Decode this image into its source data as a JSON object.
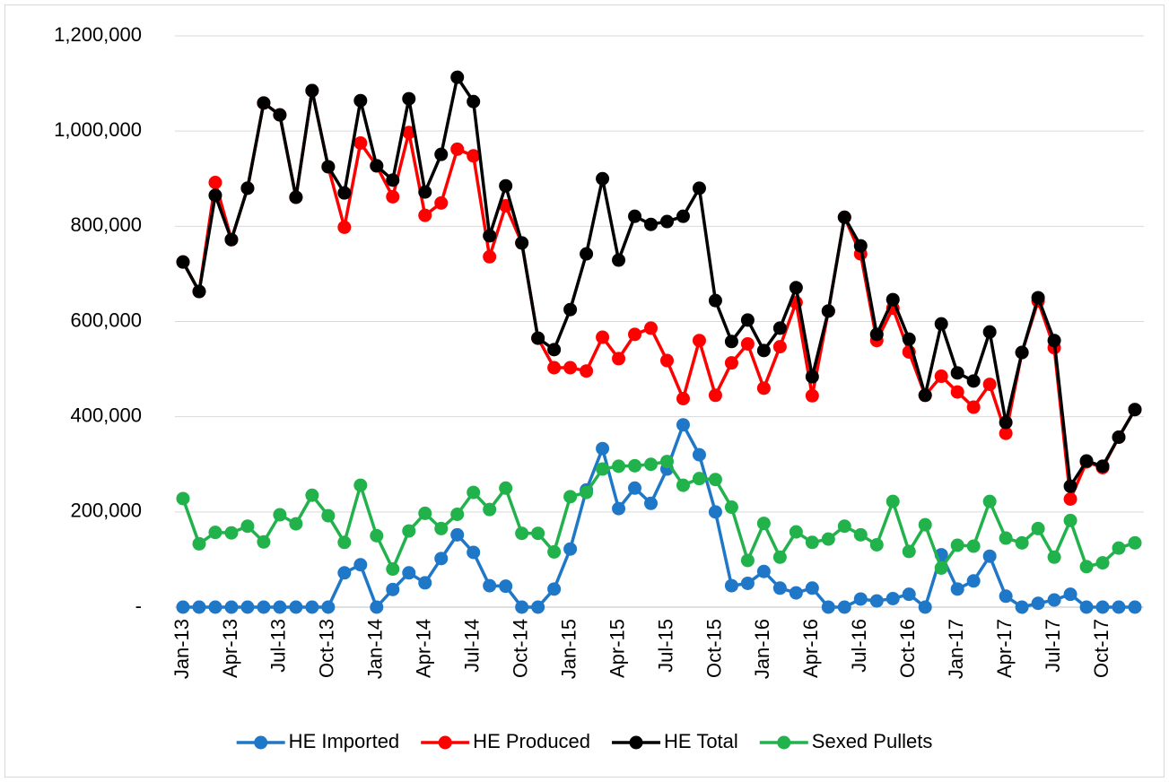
{
  "chart_data": {
    "type": "line",
    "categories": [
      "Jan-13",
      null,
      null,
      "Apr-13",
      null,
      null,
      "Jul-13",
      null,
      null,
      "Oct-13",
      null,
      null,
      "Jan-14",
      null,
      null,
      "Apr-14",
      null,
      null,
      "Jul-14",
      null,
      null,
      "Oct-14",
      null,
      null,
      "Jan-15",
      null,
      null,
      "Apr-15",
      null,
      null,
      "Jul-15",
      null,
      null,
      "Oct-15",
      null,
      null,
      "Jan-16",
      null,
      null,
      "Apr-16",
      null,
      null,
      "Jul-16",
      null,
      null,
      "Oct-16",
      null,
      null,
      "Jan-17",
      null,
      null,
      "Apr-17",
      null,
      null,
      "Jul-17",
      null,
      null,
      "Oct-17",
      null,
      null
    ],
    "ylim": [
      0,
      1200000
    ],
    "yticks": [
      {
        "value": 0,
        "label": "-"
      },
      {
        "value": 200000,
        "label": "200,000"
      },
      {
        "value": 400000,
        "label": "400,000"
      },
      {
        "value": 600000,
        "label": "600,000"
      },
      {
        "value": 800000,
        "label": "800,000"
      },
      {
        "value": 1000000,
        "label": "1,000,000"
      },
      {
        "value": 1200000,
        "label": "1,200,000"
      }
    ],
    "grid": true,
    "legend": "bottom",
    "series": [
      {
        "name": "HE Imported",
        "color": "#1f77c8",
        "values": [
          0,
          0,
          0,
          0,
          0,
          0,
          0,
          0,
          0,
          0,
          72000,
          89000,
          0,
          37000,
          72000,
          51000,
          102000,
          152000,
          115000,
          45000,
          44000,
          0,
          0,
          38000,
          122000,
          246000,
          333000,
          207000,
          250000,
          218000,
          290000,
          383000,
          320000,
          200000,
          45000,
          50000,
          75000,
          40000,
          30000,
          40000,
          0,
          0,
          17000,
          13000,
          18000,
          27000,
          0,
          110000,
          38000,
          55000,
          107000,
          23000,
          0,
          8000,
          15000,
          27000,
          0,
          0,
          0,
          0
        ]
      },
      {
        "name": "HE Produced",
        "color": "#ff0000",
        "values": [
          725000,
          663000,
          892000,
          772000,
          880000,
          1059000,
          1034000,
          861000,
          1085000,
          925000,
          798000,
          975000,
          927000,
          862000,
          997000,
          823000,
          849000,
          962000,
          948000,
          736000,
          843000,
          765000,
          565000,
          503000,
          503000,
          496000,
          567000,
          522000,
          573000,
          586000,
          518000,
          438000,
          560000,
          445000,
          513000,
          553000,
          460000,
          547000,
          640000,
          444000,
          622000,
          819000,
          742000,
          560000,
          628000,
          536000,
          445000,
          485000,
          452000,
          420000,
          468000,
          365000,
          535000,
          643000,
          545000,
          227000,
          305000,
          293000,
          357000,
          415000
        ]
      },
      {
        "name": "HE Total",
        "color": "#000000",
        "values": [
          725000,
          663000,
          865000,
          772000,
          880000,
          1059000,
          1034000,
          861000,
          1085000,
          925000,
          870000,
          1064000,
          927000,
          897000,
          1068000,
          872000,
          951000,
          1113000,
          1062000,
          780000,
          885000,
          765000,
          565000,
          541000,
          625000,
          742000,
          900000,
          729000,
          821000,
          804000,
          810000,
          821000,
          880000,
          644000,
          558000,
          603000,
          539000,
          586000,
          671000,
          484000,
          622000,
          819000,
          759000,
          573000,
          646000,
          563000,
          445000,
          595000,
          492000,
          475000,
          578000,
          388000,
          535000,
          650000,
          560000,
          254000,
          307000,
          296000,
          357000,
          415000
        ]
      },
      {
        "name": "Sexed Pullets",
        "color": "#22b24c",
        "values": [
          228000,
          133000,
          157000,
          156000,
          170000,
          137000,
          194000,
          175000,
          235000,
          192000,
          136000,
          256000,
          150000,
          80000,
          160000,
          197000,
          165000,
          195000,
          241000,
          205000,
          250000,
          155000,
          155000,
          116000,
          232000,
          241000,
          290000,
          296000,
          297000,
          300000,
          306000,
          256000,
          270000,
          268000,
          210000,
          98000,
          176000,
          105000,
          158000,
          136000,
          143000,
          170000,
          152000,
          131000,
          222000,
          117000,
          173000,
          82000,
          130000,
          128000,
          222000,
          145000,
          135000,
          165000,
          105000,
          182000,
          85000,
          93000,
          124000,
          135000
        ]
      }
    ]
  }
}
